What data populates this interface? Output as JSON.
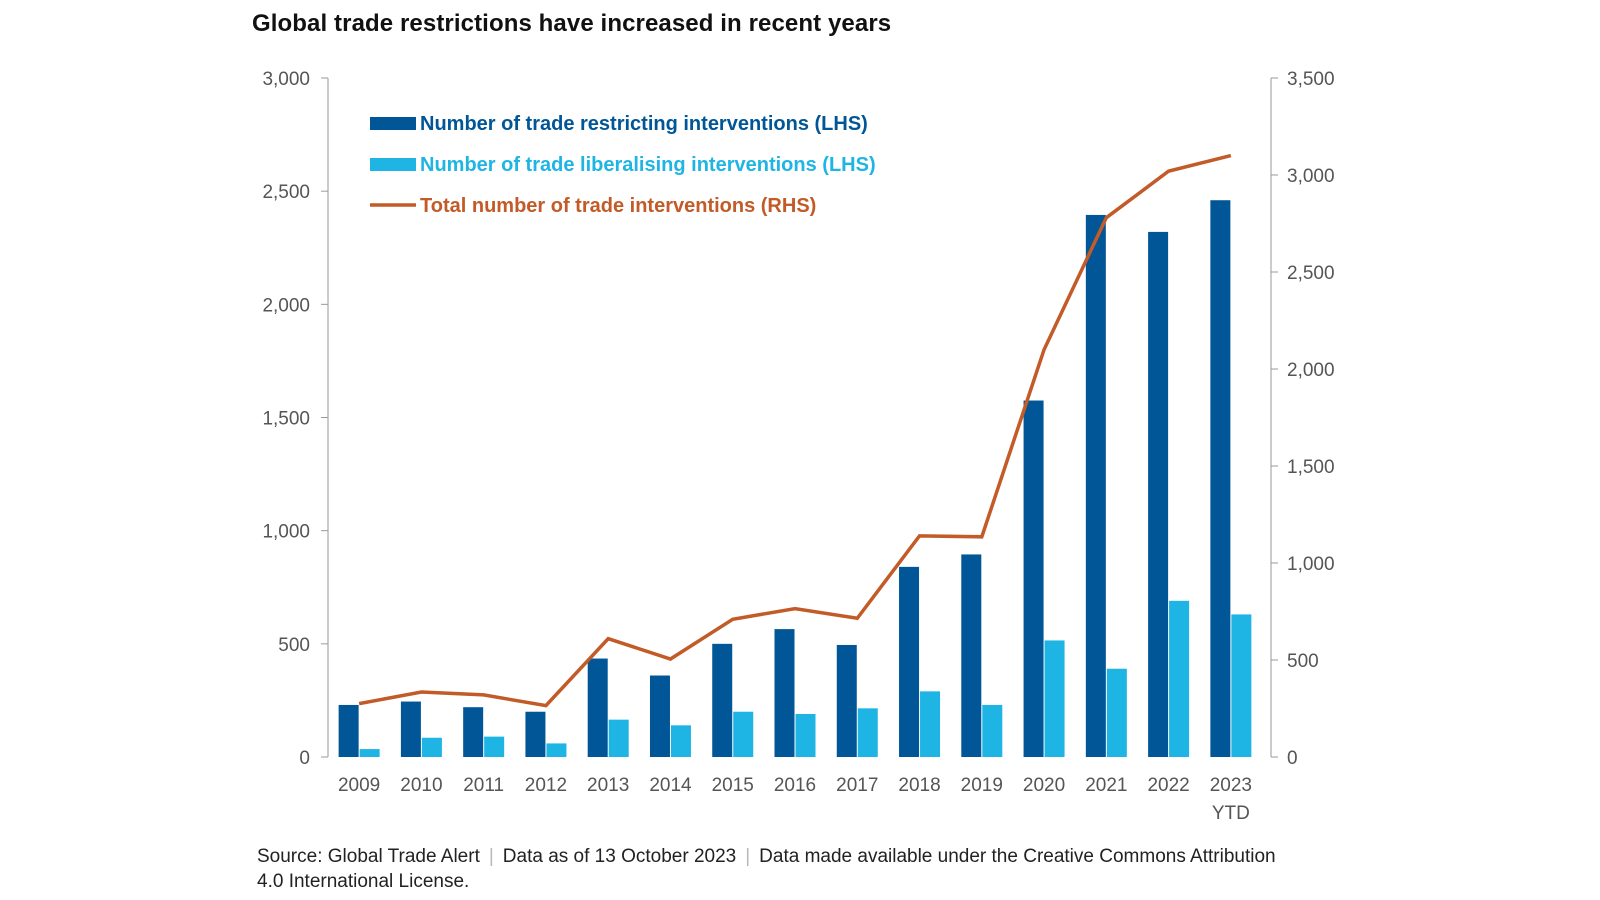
{
  "title": "Global trade restrictions have increased in recent years",
  "source": {
    "parts": [
      "Source: Global Trade Alert",
      "Data as of 13 October 2023",
      "Data made available under the Creative Commons Attribution 4.0 International License."
    ],
    "separator": "|"
  },
  "chart_data": {
    "type": "bar",
    "title": "Global trade restrictions have increased in recent years",
    "categories": [
      "2009",
      "2010",
      "2011",
      "2012",
      "2013",
      "2014",
      "2015",
      "2016",
      "2017",
      "2018",
      "2019",
      "2020",
      "2021",
      "2022",
      "2023\nYTD"
    ],
    "series": [
      {
        "name": "Number of trade restricting interventions (LHS)",
        "type": "bar",
        "axis": "left",
        "color": "#005696",
        "values": [
          230,
          245,
          220,
          200,
          435,
          360,
          500,
          565,
          495,
          840,
          895,
          1575,
          2395,
          2320,
          2460
        ]
      },
      {
        "name": "Number of trade liberalising interventions (LHS)",
        "type": "bar",
        "axis": "left",
        "color": "#1EB5E5",
        "values": [
          35,
          85,
          90,
          60,
          165,
          140,
          200,
          190,
          215,
          290,
          230,
          515,
          390,
          690,
          630
        ]
      },
      {
        "name": "Total number of trade interventions (RHS)",
        "type": "line",
        "axis": "right",
        "color": "#C25B27",
        "values": [
          275,
          335,
          320,
          265,
          610,
          505,
          710,
          765,
          715,
          1140,
          1135,
          2100,
          2780,
          3020,
          3100
        ]
      }
    ],
    "y_left": {
      "ylim": [
        0,
        3000
      ],
      "ticks": [
        0,
        500,
        1000,
        1500,
        2000,
        2500,
        3000
      ],
      "tick_labels": [
        "0",
        "500",
        "1,000",
        "1,500",
        "2,000",
        "2,500",
        "3,000"
      ]
    },
    "y_right": {
      "ylim": [
        0,
        3500
      ],
      "ticks": [
        0,
        500,
        1000,
        1500,
        2000,
        2500,
        3000,
        3500
      ],
      "tick_labels": [
        "0",
        "500",
        "1,000",
        "1,500",
        "2,000",
        "2,500",
        "3,000",
        "3,500"
      ]
    },
    "xlabel": "",
    "ylabel": "",
    "grid": false,
    "legend_position": "top-left"
  }
}
